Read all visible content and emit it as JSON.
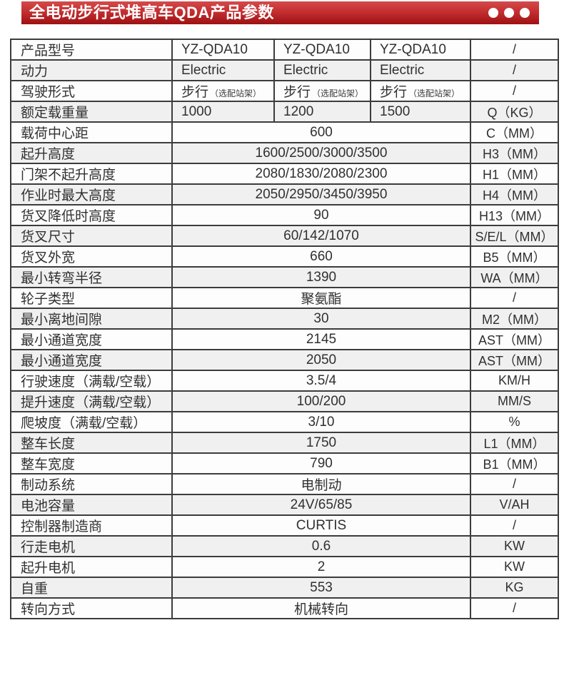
{
  "header": {
    "title": "全电动步行式堆高车QDA产品参数",
    "menu_dots_count": 3,
    "banner_color_top": "#d54a4a",
    "banner_color_bottom": "#9e1113",
    "dot_color": "#ffffff"
  },
  "table": {
    "shaded_row_color": "#f0f0f0",
    "border_color": "#3c3c3c",
    "rows": [
      {
        "label": "产品型号",
        "cells": [
          "YZ-QDA10",
          "YZ-QDA10",
          "YZ-QDA10"
        ],
        "unit": "/",
        "shaded": false
      },
      {
        "label": "动力",
        "cells": [
          "Electric",
          "Electric",
          "Electric"
        ],
        "unit": "/",
        "shaded": true
      },
      {
        "label": "驾驶形式",
        "cells": [
          {
            "main": "步行",
            "sub": "（选配站架）"
          },
          {
            "main": "步行",
            "sub": "（选配站架）"
          },
          {
            "main": "步行",
            "sub": "（选配站架）"
          }
        ],
        "unit": "/",
        "shaded": false
      },
      {
        "label": "额定载重量",
        "cells": [
          "1000",
          "1200",
          "1500"
        ],
        "unit": "Q（KG）",
        "shaded": true
      },
      {
        "label": "载荷中心距",
        "value": "600",
        "unit": "C（MM）",
        "shaded": false
      },
      {
        "label": "起升高度",
        "value": "1600/2500/3000/3500",
        "unit": "H3（MM）",
        "shaded": true
      },
      {
        "label": "门架不起升高度",
        "value": "2080/1830/2080/2300",
        "unit": "H1（MM）",
        "shaded": false
      },
      {
        "label": "作业时最大高度",
        "value": "2050/2950/3450/3950",
        "unit": "H4（MM）",
        "shaded": true
      },
      {
        "label": "货叉降低时高度",
        "value": "90",
        "unit": "H13（MM）",
        "shaded": false
      },
      {
        "label": "货叉尺寸",
        "value": "60/142/1070",
        "unit": "S/E/L（MM）",
        "shaded": true
      },
      {
        "label": "货叉外宽",
        "value": "660",
        "unit": "B5（MM）",
        "shaded": false
      },
      {
        "label": "最小转弯半径",
        "value": "1390",
        "unit": "WA（MM）",
        "shaded": true
      },
      {
        "label": "轮子类型",
        "value": "聚氨酯",
        "unit": "/",
        "shaded": false
      },
      {
        "label": "最小离地间隙",
        "value": "30",
        "unit": "M2（MM）",
        "shaded": true
      },
      {
        "label": "最小通道宽度",
        "value": "2145",
        "unit": "AST（MM）",
        "shaded": false
      },
      {
        "label": "最小通道宽度",
        "value": "2050",
        "unit": "AST（MM）",
        "shaded": true
      },
      {
        "label": "行驶速度（满载/空载）",
        "value": "3.5/4",
        "unit": "KM/H",
        "shaded": false
      },
      {
        "label": "提升速度（满载/空载）",
        "value": "100/200",
        "unit": "MM/S",
        "shaded": true
      },
      {
        "label": "爬坡度（满载/空载）",
        "value": "3/10",
        "unit": "%",
        "shaded": false
      },
      {
        "label": "整车长度",
        "value": "1750",
        "unit": "L1（MM）",
        "shaded": true
      },
      {
        "label": "整车宽度",
        "value": "790",
        "unit": "B1（MM）",
        "shaded": false
      },
      {
        "label": "制动系统",
        "value": "电制动",
        "unit": "/",
        "shaded": false
      },
      {
        "label": "电池容量",
        "value": "24V/65/85",
        "unit": "V/AH",
        "shaded": true
      },
      {
        "label": "控制器制造商",
        "value": "CURTIS",
        "unit": "/",
        "shaded": false
      },
      {
        "label": "行走电机",
        "value": "0.6",
        "unit": "KW",
        "shaded": true
      },
      {
        "label": "起升电机",
        "value": "2",
        "unit": "KW",
        "shaded": false
      },
      {
        "label": "自重",
        "value": "553",
        "unit": "KG",
        "shaded": true
      },
      {
        "label": "转向方式",
        "value": "机械转向",
        "unit": "/",
        "shaded": false
      }
    ]
  }
}
